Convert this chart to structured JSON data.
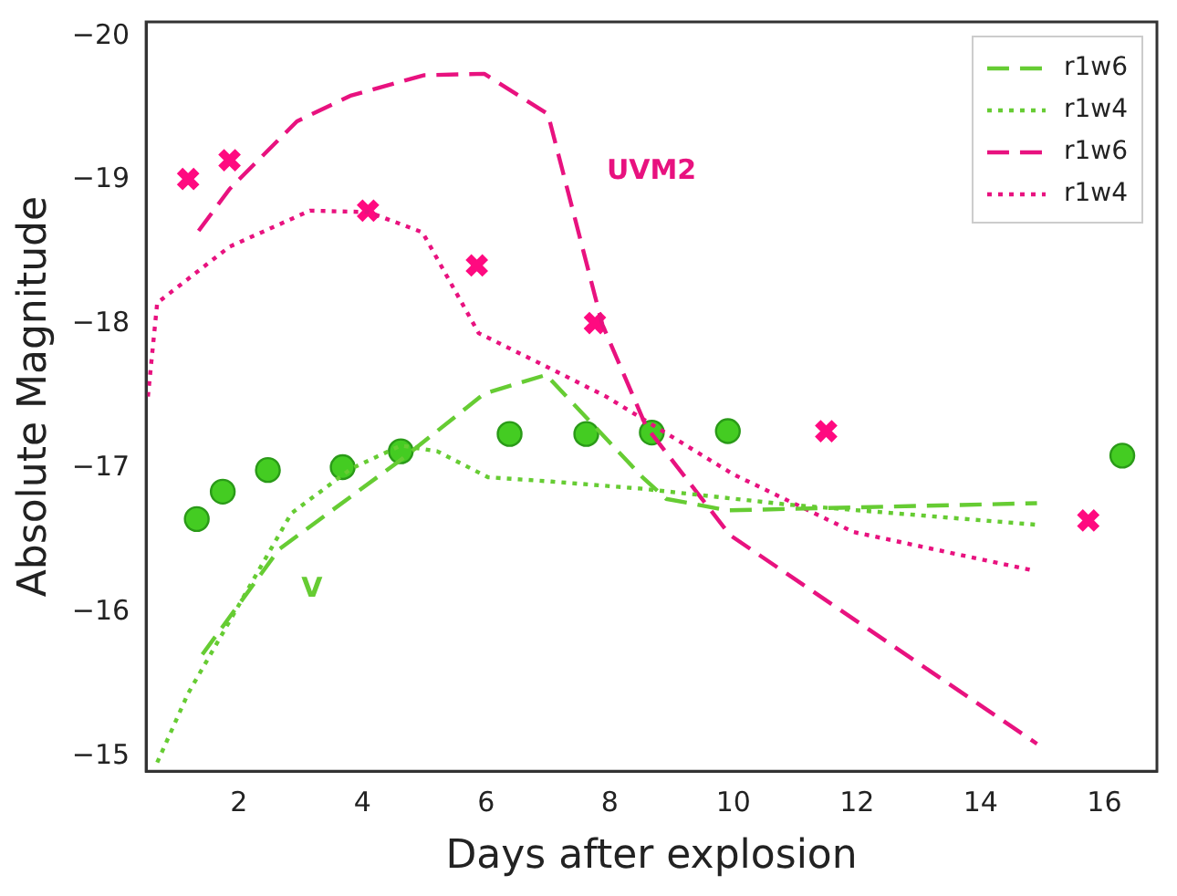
{
  "chart_data": {
    "type": "line",
    "xlabel": "Days after explosion",
    "ylabel": "Absolute Magnitude",
    "xlim": [
      0.5,
      16.85
    ],
    "xticks": [
      2,
      4,
      6,
      8,
      10,
      12,
      14,
      16
    ],
    "ylim": [
      -14.9,
      -20.1
    ],
    "yticks": [
      {
        "value": -15,
        "label": "−15"
      },
      {
        "value": -16,
        "label": "−16"
      },
      {
        "value": -17,
        "label": "−17"
      },
      {
        "value": -18,
        "label": "−18"
      },
      {
        "value": -19,
        "label": "−19"
      },
      {
        "value": -20,
        "label": "−20"
      }
    ],
    "grid": false,
    "legend": "top right",
    "annotations": [
      "UVM2",
      "V"
    ],
    "series": [
      {
        "name": "r1w6",
        "color": "#66cc33",
        "line_style": "dashed",
        "marker": "none",
        "x": [
          1.41,
          2.65,
          4.62,
          5.97,
          6.97,
          8.53,
          8.91,
          9.91,
          14.91
        ],
        "values": [
          -15.71,
          -16.44,
          -17.06,
          -17.52,
          -17.65,
          -16.94,
          -16.79,
          -16.71,
          -16.76
        ]
      },
      {
        "name": "r1w4",
        "color": "#66cc33",
        "line_style": "dotted",
        "marker": "none",
        "x": [
          0.68,
          1.18,
          1.97,
          2.85,
          3.82,
          4.62,
          5.21,
          6.03,
          7.06,
          8.53,
          10.88,
          14.91
        ],
        "values": [
          -14.96,
          -15.44,
          -16.03,
          -16.69,
          -17.0,
          -17.16,
          -17.12,
          -16.94,
          -16.91,
          -16.86,
          -16.75,
          -16.61
        ]
      },
      {
        "name": "r1w6",
        "color": "#e8127f",
        "line_style": "dashed",
        "marker": "none",
        "x": [
          1.35,
          1.85,
          2.94,
          3.82,
          5.0,
          5.97,
          7.0,
          7.88,
          8.59,
          9.94,
          14.91
        ],
        "values": [
          -18.65,
          -18.94,
          -19.41,
          -19.59,
          -19.73,
          -19.74,
          -19.46,
          -18.0,
          -17.29,
          -16.54,
          -15.09
        ]
      },
      {
        "name": "r1w4",
        "color": "#e8127f",
        "line_style": "dotted",
        "marker": "none",
        "x": [
          0.53,
          0.68,
          1.85,
          3.15,
          4.1,
          4.97,
          5.88,
          7.06,
          7.94,
          10.0,
          11.94,
          14.88
        ],
        "values": [
          -17.5,
          -18.15,
          -18.54,
          -18.79,
          -18.78,
          -18.64,
          -17.94,
          -17.69,
          -17.5,
          -16.96,
          -16.56,
          -16.29
        ]
      },
      {
        "type": "scatter",
        "color": "#44cc22",
        "marker": "circle",
        "x": [
          1.32,
          1.74,
          2.47,
          3.68,
          4.62,
          6.38,
          7.62,
          8.68,
          9.91,
          16.29
        ],
        "values": [
          -16.65,
          -16.84,
          -16.99,
          -17.01,
          -17.12,
          -17.24,
          -17.24,
          -17.25,
          -17.26,
          -17.09
        ]
      },
      {
        "type": "scatter",
        "color": "#ff0a80",
        "marker": "cross",
        "x": [
          1.18,
          1.85,
          4.09,
          5.85,
          7.76,
          11.5,
          15.74
        ],
        "values": [
          -19.01,
          -19.14,
          -18.79,
          -18.41,
          -18.01,
          -17.26,
          -16.64
        ]
      }
    ]
  }
}
